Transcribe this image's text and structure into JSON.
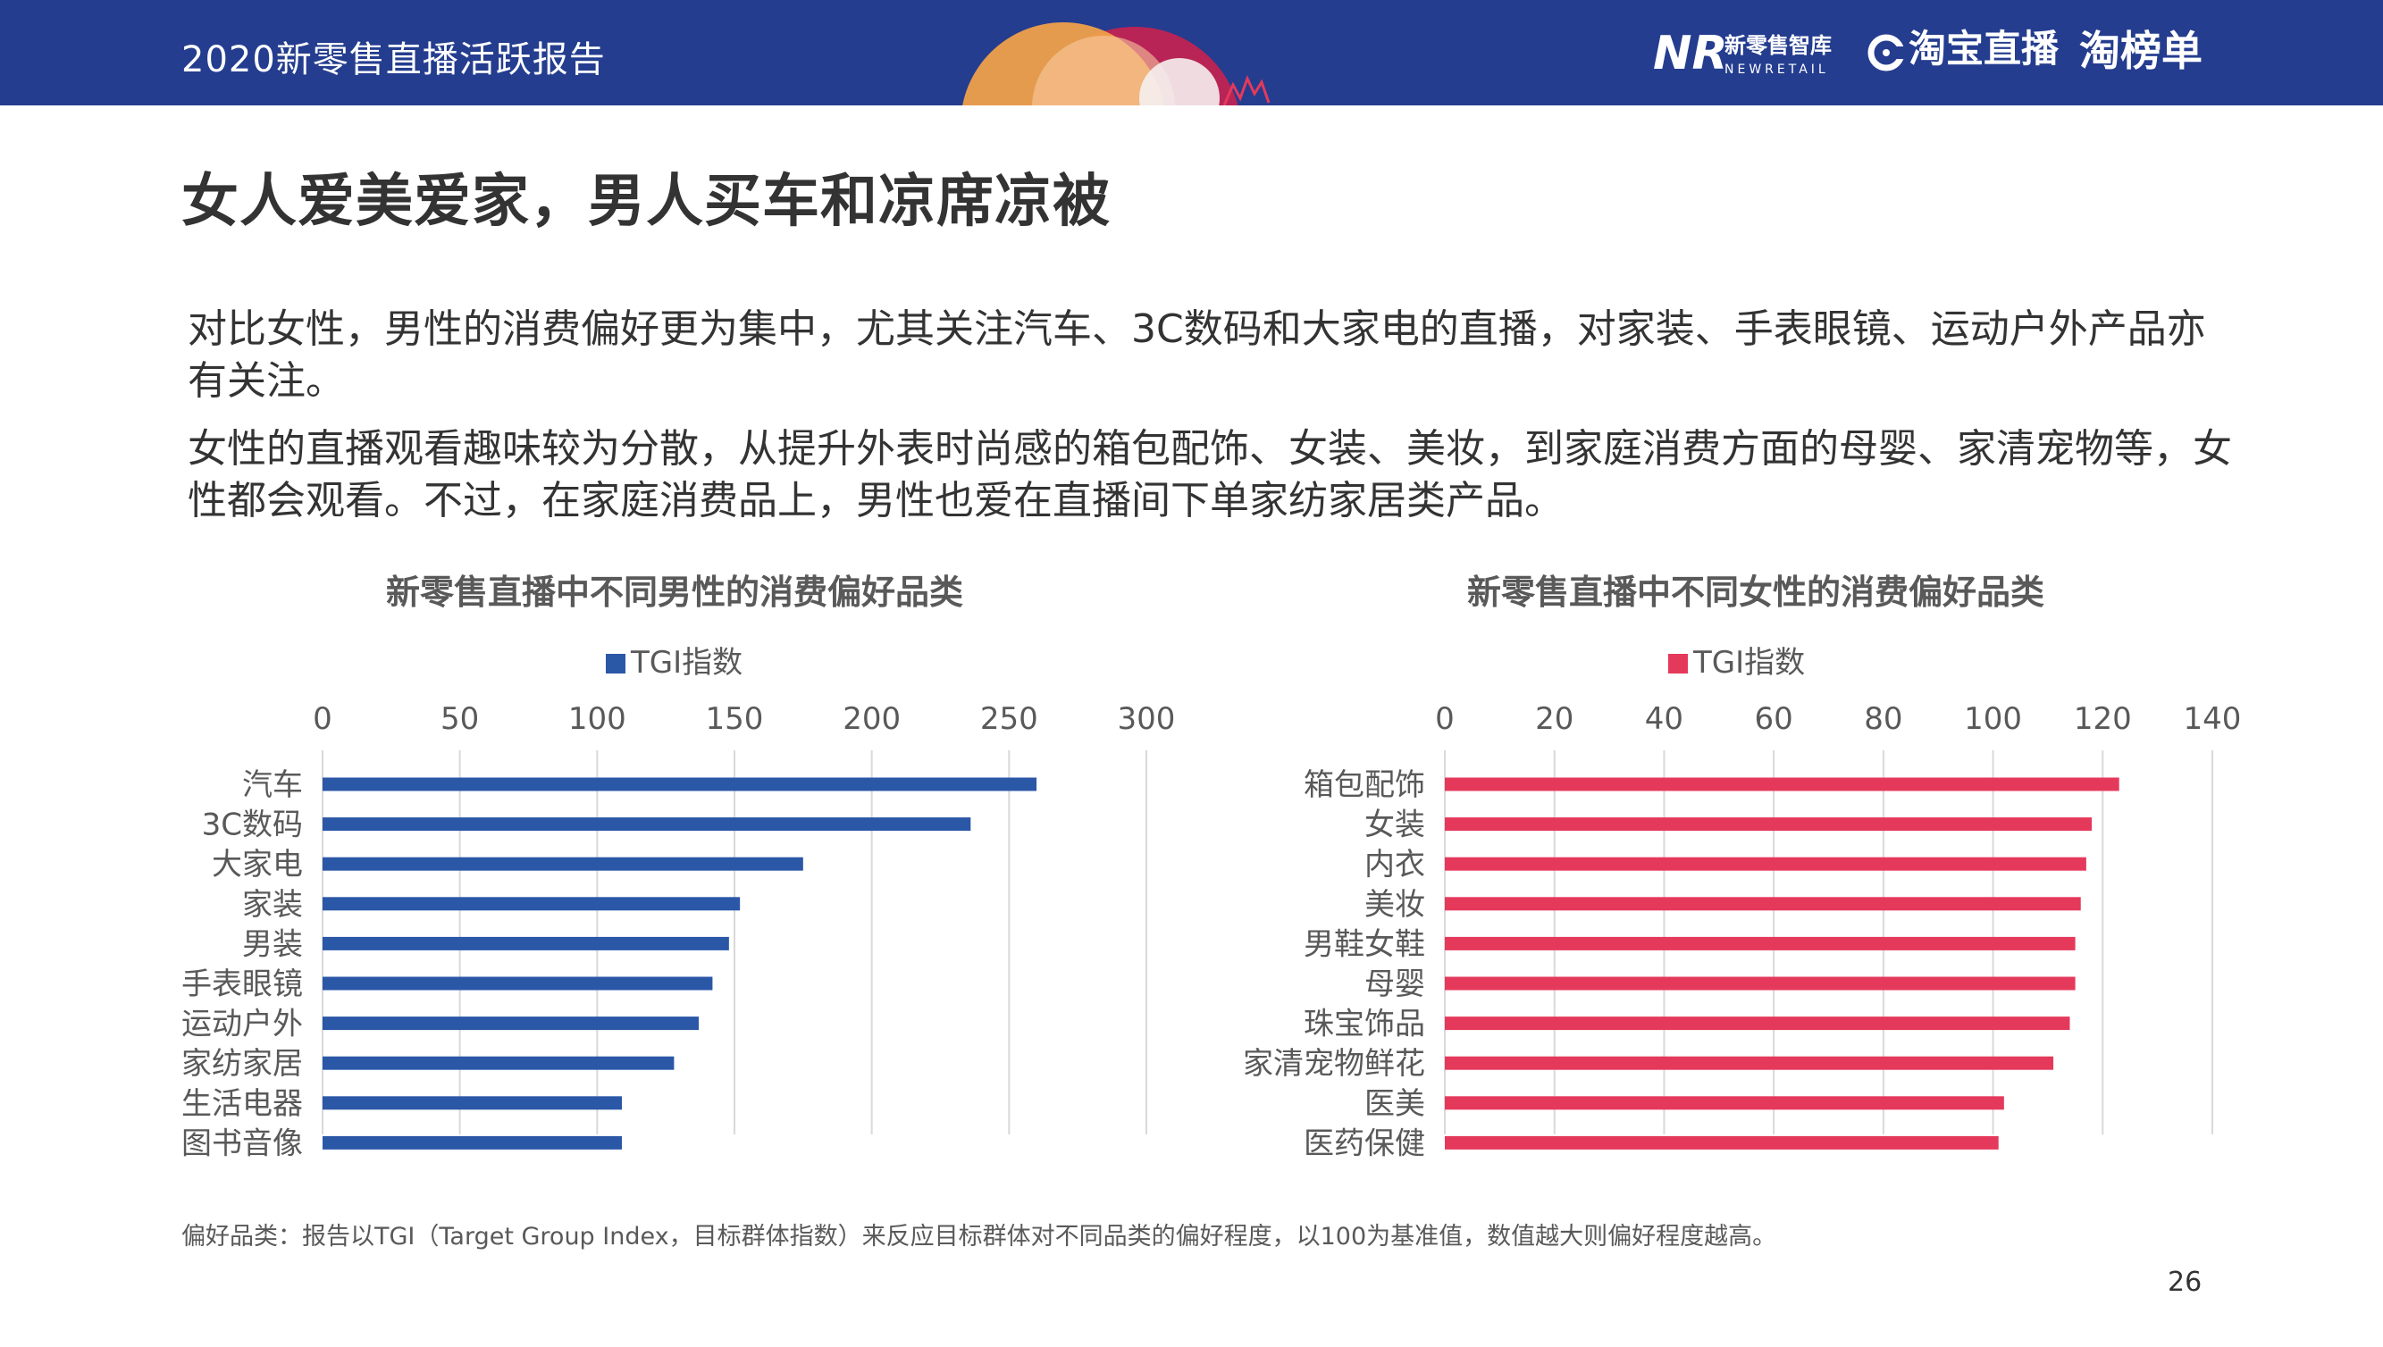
{
  "header": {
    "title": "2020新零售直播活跃报告",
    "logo_nr_mark": "NR",
    "logo_nr_name": "新零售智库",
    "logo_nr_sub": "NEWRETAIL",
    "logo_taobao_live": "淘宝直播",
    "logo_taobangdan": "淘榜单"
  },
  "page": {
    "heading": "女人爱美爱家，男人买车和凉席凉被",
    "paragraph1": "对比女性，男性的消费偏好更为集中，尤其关注汽车、3C数码和大家电的直播，对家装、手表眼镜、运动户外产品亦有关注。",
    "paragraph2": "女性的直播观看趣味较为分散，从提升外表时尚感的箱包配饰、女装、美妆，到家庭消费方面的母婴、家清宠物等，女性都会观看。不过，在家庭消费品上，男性也爱在直播间下单家纺家居类产品。",
    "footnote": "偏好品类：报告以TGI（Target Group Index，目标群体指数）来反应目标群体对不同品类的偏好程度，以100为基准值，数值越大则偏好程度越高。",
    "page_number": "26"
  },
  "chart_data": [
    {
      "type": "bar",
      "orientation": "horizontal",
      "title": "新零售直播中不同男性的消费偏好品类",
      "legend": "TGI指数",
      "legend_position": "top",
      "color": "#2b57a7",
      "categories": [
        "汽车",
        "3C数码",
        "大家电",
        "家装",
        "男装",
        "手表眼镜",
        "运动户外",
        "家纺家居",
        "生活电器",
        "图书音像"
      ],
      "series": [
        {
          "name": "TGI指数",
          "values": [
            260,
            236,
            175,
            152,
            148,
            142,
            137,
            128,
            109,
            109
          ]
        }
      ],
      "xlim": [
        0,
        300
      ],
      "ticks": [
        0,
        50,
        100,
        150,
        200,
        250,
        300
      ],
      "axis_position": "top",
      "grid": true
    },
    {
      "type": "bar",
      "orientation": "horizontal",
      "title": "新零售直播中不同女性的消费偏好品类",
      "legend": "TGI指数",
      "legend_position": "top",
      "color": "#e5395c",
      "categories": [
        "箱包配饰",
        "女装",
        "内衣",
        "美妆",
        "男鞋女鞋",
        "母婴",
        "珠宝饰品",
        "家清宠物鲜花",
        "医美",
        "医药保健"
      ],
      "series": [
        {
          "name": "TGI指数",
          "values": [
            123,
            118,
            117,
            116,
            115,
            115,
            114,
            111,
            102,
            101
          ]
        }
      ],
      "xlim": [
        0,
        140
      ],
      "ticks": [
        0,
        20,
        40,
        60,
        80,
        100,
        120,
        140
      ],
      "axis_position": "top",
      "grid": true
    }
  ]
}
